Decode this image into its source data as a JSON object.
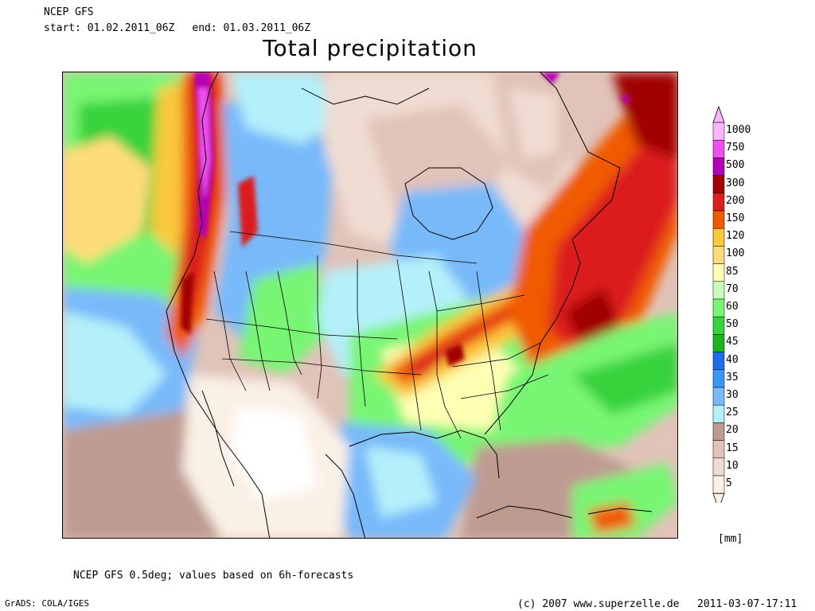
{
  "header": {
    "model": "NCEP GFS",
    "start_label": "start:",
    "start": "01.02.2011_06Z",
    "end_label": "end:",
    "end": "01.03.2011_06Z",
    "title": "Total precipitation"
  },
  "legend": {
    "unit": "[mm]",
    "levels": [
      {
        "label": "1000",
        "color": "#ffb4ff"
      },
      {
        "label": "750",
        "color": "#f050f0"
      },
      {
        "label": "500",
        "color": "#b400b4"
      },
      {
        "label": "300",
        "color": "#a00000"
      },
      {
        "label": "200",
        "color": "#dc1e1e"
      },
      {
        "label": "150",
        "color": "#f05a00"
      },
      {
        "label": "120",
        "color": "#fac83c"
      },
      {
        "label": "100",
        "color": "#ffdc7a"
      },
      {
        "label": "85",
        "color": "#ffffb4"
      },
      {
        "label": "70",
        "color": "#c8ffbe"
      },
      {
        "label": "60",
        "color": "#78f573"
      },
      {
        "label": "50",
        "color": "#37d23c"
      },
      {
        "label": "45",
        "color": "#1eb41e"
      },
      {
        "label": "40",
        "color": "#1e6eeb"
      },
      {
        "label": "35",
        "color": "#3c96f5"
      },
      {
        "label": "30",
        "color": "#78b9fa"
      },
      {
        "label": "25",
        "color": "#b4f0fa"
      },
      {
        "label": "20",
        "color": "#be9b91"
      },
      {
        "label": "15",
        "color": "#e1c3b9"
      },
      {
        "label": "10",
        "color": "#f0dcd2"
      },
      {
        "label": "5",
        "color": "#faf0e6"
      }
    ]
  },
  "footer": {
    "source_note": "NCEP GFS 0.5deg; values based on 6h-forecasts",
    "grads": "GrADS: COLA/IGES",
    "copyright": "(c) 2007 www.superzelle.de",
    "timestamp": "2011-03-07-17:11"
  }
}
